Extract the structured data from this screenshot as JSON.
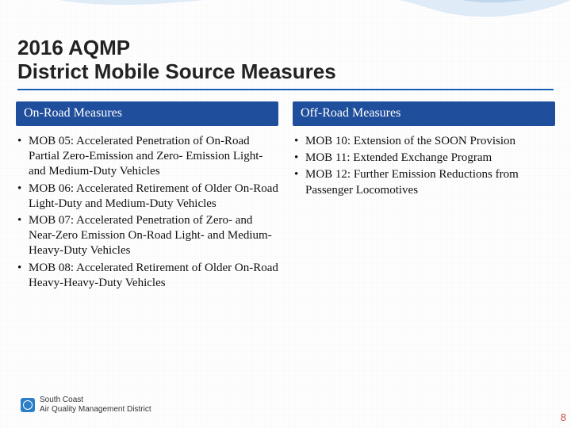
{
  "colors": {
    "accent_blue": "#1f4e9c",
    "underline_blue": "#1a5fb4",
    "page_num_color": "#c0504d",
    "swoosh_light": "#dbe9f6",
    "swoosh_dark": "#9fc2e3"
  },
  "title": {
    "line1": "2016 AQMP",
    "line2": "District Mobile Source Measures"
  },
  "left": {
    "header": "On-Road Measures",
    "items": [
      "MOB 05: Accelerated Penetration of On-Road Partial Zero-Emission and Zero- Emission Light- and Medium-Duty Vehicles",
      "MOB 06: Accelerated Retirement of Older On-Road Light-Duty and Medium-Duty Vehicles",
      "MOB 07: Accelerated Penetration of Zero- and Near-Zero Emission On-Road Light- and Medium-Heavy-Duty Vehicles",
      "MOB 08: Accelerated Retirement of Older On-Road Heavy-Heavy-Duty Vehicles"
    ]
  },
  "right": {
    "header": "Off-Road Measures",
    "items": [
      "MOB 10: Extension of the SOON Provision",
      "MOB 11: Extended Exchange Program",
      "MOB 12: Further Emission Reductions from Passenger Locomotives"
    ]
  },
  "footer": {
    "org_line1": "South Coast",
    "org_line2": "Air Quality Management District"
  },
  "page_number": "8"
}
